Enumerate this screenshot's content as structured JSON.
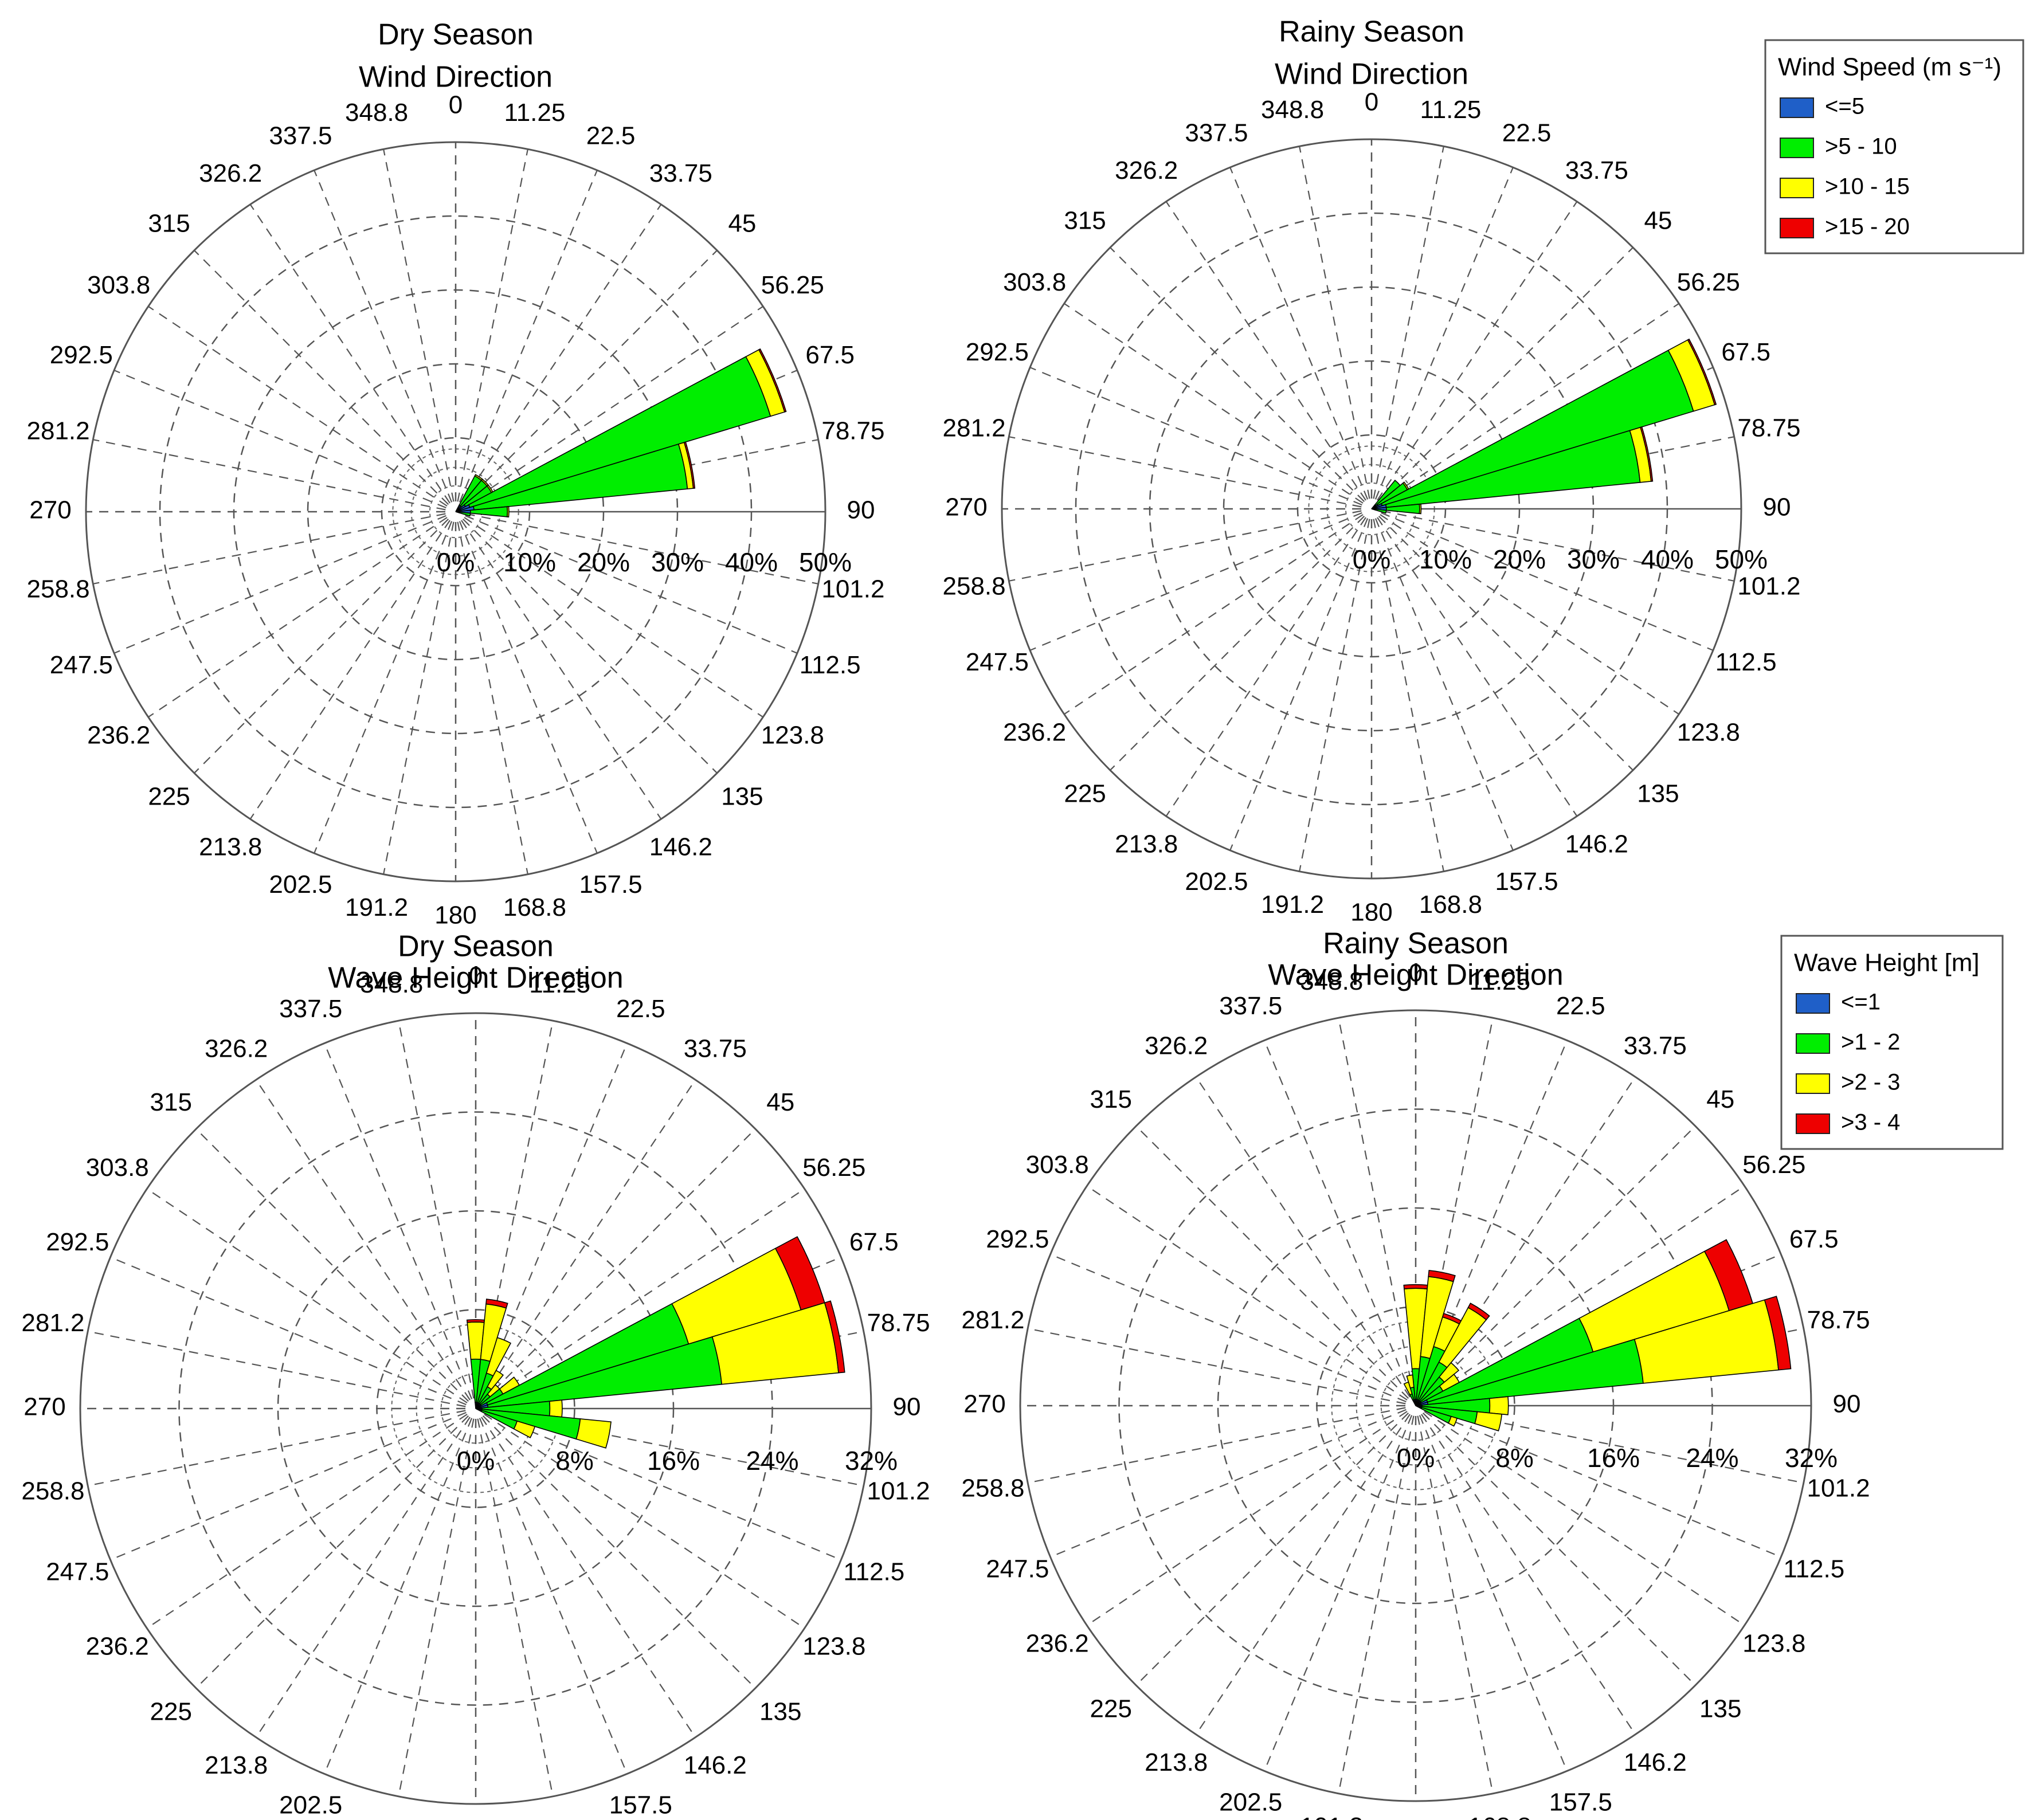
{
  "direction_labels": [
    "0",
    "11.25",
    "22.5",
    "33.75",
    "45",
    "56.25",
    "67.5",
    "78.75",
    "90",
    "101.2",
    "112.5",
    "123.8",
    "135",
    "146.2",
    "157.5",
    "168.8",
    "180",
    "191.2",
    "202.5",
    "213.8",
    "225",
    "236.2",
    "247.5",
    "258.8",
    "270",
    "281.2",
    "292.5",
    "303.8",
    "315",
    "326.2",
    "337.5",
    "348.8"
  ],
  "legends": [
    {
      "title": "Wind Speed (m s⁻¹)",
      "items": [
        {
          "label": "<=5",
          "color": "#1f5fc8"
        },
        {
          "label": ">5 - 10",
          "color": "#00ee00"
        },
        {
          "label": ">10 - 15",
          "color": "#ffff00"
        },
        {
          "label": ">15 - 20",
          "color": "#ee0000"
        }
      ]
    },
    {
      "title": "Wave Height [m]",
      "items": [
        {
          "label": "<=1",
          "color": "#1f5fc8"
        },
        {
          "label": ">1 - 2",
          "color": "#00ee00"
        },
        {
          "label": ">2 - 3",
          "color": "#ffff00"
        },
        {
          "label": ">3 - 4",
          "color": "#ee0000"
        }
      ]
    }
  ],
  "chart_data": [
    {
      "type": "windrose",
      "title_lines": [
        "Dry Season",
        "Wind Direction"
      ],
      "radial_max": 50,
      "radial_ticks": [
        0,
        10,
        20,
        30,
        40,
        50
      ],
      "radial_tick_labels": [
        "0%",
        "10%",
        "20%",
        "30%",
        "40%",
        "50%"
      ],
      "sector_width_deg": 11.25,
      "bins": [
        "<=5",
        ">5 - 10",
        ">10 - 15",
        ">15 - 20"
      ],
      "sectors": [
        {
          "direction": 33.75,
          "cumulative": [
            1,
            5.5,
            5.7,
            5.7
          ]
        },
        {
          "direction": 45,
          "cumulative": [
            1,
            5.5,
            5.7,
            5.7
          ]
        },
        {
          "direction": 56.25,
          "cumulative": [
            1.5,
            5.5,
            5.7,
            5.7
          ]
        },
        {
          "direction": 67.5,
          "cumulative": [
            2,
            44.5,
            46.5,
            46.7
          ]
        },
        {
          "direction": 78.75,
          "cumulative": [
            2.5,
            31.5,
            32.3,
            32.5
          ]
        },
        {
          "direction": 90,
          "cumulative": [
            2,
            7,
            7.2,
            7.2
          ]
        },
        {
          "direction": 101.25,
          "cumulative": [
            0.5,
            2,
            2,
            2
          ]
        }
      ]
    },
    {
      "type": "windrose",
      "title_lines": [
        "Rainy Season",
        "Wind Direction"
      ],
      "radial_max": 50,
      "radial_ticks": [
        0,
        10,
        20,
        30,
        40,
        50
      ],
      "radial_tick_labels": [
        "0%",
        "10%",
        "20%",
        "30%",
        "40%",
        "50%"
      ],
      "sector_width_deg": 11.25,
      "bins": [
        "<=5",
        ">5 - 10",
        ">10 - 15",
        ">15 - 20"
      ],
      "sectors": [
        {
          "direction": 45,
          "cumulative": [
            0.7,
            5,
            5,
            5
          ]
        },
        {
          "direction": 56.25,
          "cumulative": [
            1,
            5.5,
            5.7,
            5.7
          ]
        },
        {
          "direction": 67.5,
          "cumulative": [
            1.5,
            45.5,
            48.5,
            48.7
          ]
        },
        {
          "direction": 78.75,
          "cumulative": [
            2,
            36.5,
            38,
            38.2
          ]
        },
        {
          "direction": 90,
          "cumulative": [
            2,
            6.5,
            6.7,
            6.7
          ]
        },
        {
          "direction": 101.25,
          "cumulative": [
            0.5,
            2,
            2,
            2
          ]
        }
      ]
    },
    {
      "type": "windrose",
      "title_lines": [
        "Dry Season",
        "Wave Height Direction"
      ],
      "radial_max": 32,
      "radial_ticks": [
        0,
        8,
        16,
        24,
        32
      ],
      "radial_tick_labels": [
        "0%",
        "8%",
        "16%",
        "24%",
        "32%"
      ],
      "sector_width_deg": 11.25,
      "bins": [
        "<=1",
        ">1 - 2",
        ">2 - 3",
        ">3 - 4"
      ],
      "sectors": [
        {
          "direction": 0,
          "cumulative": [
            0.5,
            4,
            7,
            7.2
          ]
        },
        {
          "direction": 11.25,
          "cumulative": [
            0.5,
            4,
            8.5,
            8.9
          ]
        },
        {
          "direction": 22.5,
          "cumulative": [
            0.5,
            3,
            6,
            6
          ]
        },
        {
          "direction": 33.75,
          "cumulative": [
            0.5,
            2,
            3.5,
            3.5
          ]
        },
        {
          "direction": 45,
          "cumulative": [
            0.5,
            1.5,
            2.5,
            2.5
          ]
        },
        {
          "direction": 56.25,
          "cumulative": [
            0.5,
            2.5,
            4,
            4
          ]
        },
        {
          "direction": 67.5,
          "cumulative": [
            1,
            18,
            27.5,
            29.5
          ]
        },
        {
          "direction": 78.75,
          "cumulative": [
            1,
            20,
            29.5,
            30
          ]
        },
        {
          "direction": 90,
          "cumulative": [
            0.5,
            6,
            7,
            7
          ]
        },
        {
          "direction": 101.25,
          "cumulative": [
            0.5,
            8.5,
            11,
            11
          ]
        },
        {
          "direction": 112.5,
          "cumulative": [
            0.5,
            3.5,
            5,
            5
          ]
        }
      ]
    },
    {
      "type": "windrose",
      "title_lines": [
        "Rainy Season",
        "Wave Height Direction"
      ],
      "radial_max": 32,
      "radial_ticks": [
        0,
        8,
        16,
        24,
        32
      ],
      "radial_tick_labels": [
        "0%",
        "8%",
        "16%",
        "24%",
        "32%"
      ],
      "sector_width_deg": 11.25,
      "bins": [
        "<=1",
        ">1 - 2",
        ">2 - 3",
        ">3 - 4"
      ],
      "sectors": [
        {
          "direction": 0,
          "cumulative": [
            0.5,
            3,
            9.5,
            9.8
          ]
        },
        {
          "direction": 11.25,
          "cumulative": [
            0.5,
            4,
            10.5,
            11
          ]
        },
        {
          "direction": 22.5,
          "cumulative": [
            0.5,
            5,
            7.5,
            7.8
          ]
        },
        {
          "direction": 33.75,
          "cumulative": [
            0.5,
            4,
            9,
            9.4
          ]
        },
        {
          "direction": 45,
          "cumulative": [
            0.5,
            3,
            4.5,
            4.5
          ]
        },
        {
          "direction": 56.25,
          "cumulative": [
            0.5,
            2.5,
            4,
            4
          ]
        },
        {
          "direction": 67.5,
          "cumulative": [
            1,
            15,
            26.5,
            28.5
          ]
        },
        {
          "direction": 78.75,
          "cumulative": [
            1,
            18.5,
            29.5,
            30.5
          ]
        },
        {
          "direction": 90,
          "cumulative": [
            0.5,
            6,
            7.5,
            7.5
          ]
        },
        {
          "direction": 101.25,
          "cumulative": [
            0.5,
            5,
            7,
            7
          ]
        },
        {
          "direction": 112.5,
          "cumulative": [
            0.5,
            3,
            3.5,
            3.5
          ]
        },
        {
          "direction": 337.5,
          "cumulative": [
            0.5,
            1,
            2,
            2
          ]
        },
        {
          "direction": 348.75,
          "cumulative": [
            0.5,
            1.5,
            2.5,
            2.5
          ]
        }
      ]
    }
  ]
}
